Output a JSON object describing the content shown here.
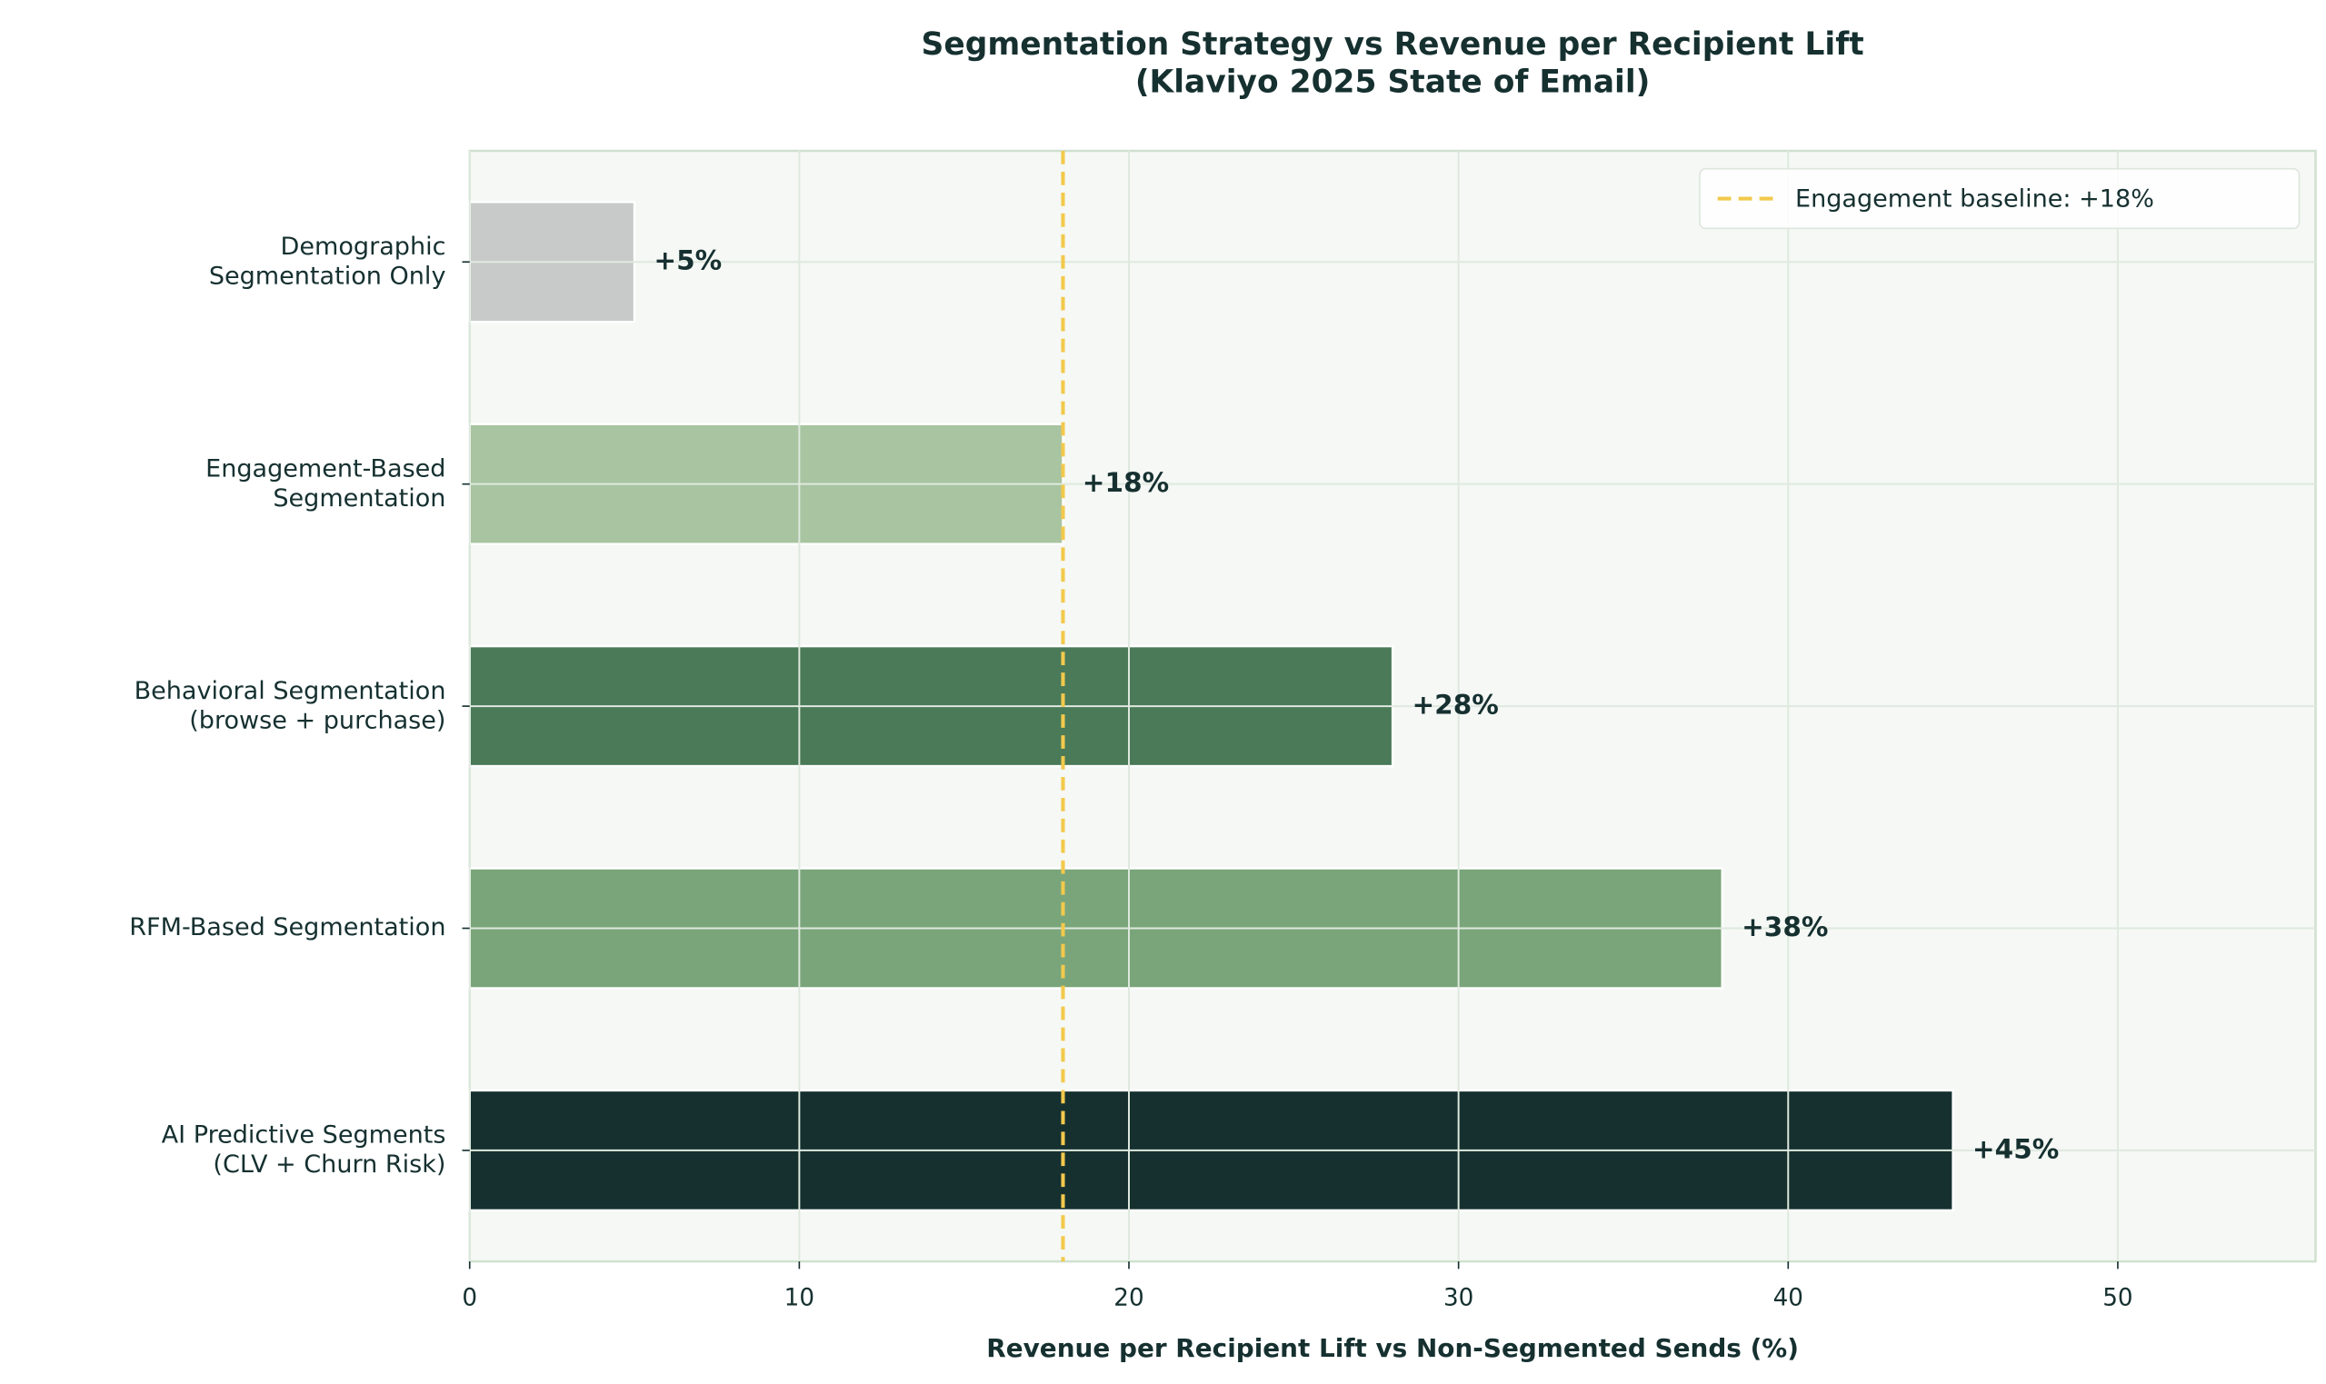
{
  "chart_data": {
    "type": "barh",
    "title": "Segmentation Strategy vs Revenue per Recipient Lift\n(Klaviyo 2025 State of Email)",
    "xlabel": "Revenue per Recipient Lift vs Non-Segmented Sends (%)",
    "categories": [
      "Demographic\nSegmentation Only",
      "Engagement-Based\nSegmentation",
      "Behavioral Segmentation\n(browse + purchase)",
      "RFM-Based Segmentation",
      "AI Predictive Segments\n(CLV + Churn Risk)"
    ],
    "values": [
      5,
      18,
      28,
      38,
      45
    ],
    "value_labels": [
      "+5%",
      "+18%",
      "+28%",
      "+38%",
      "+45%"
    ],
    "colors": [
      "#c8cac9",
      "#a8c4a0",
      "#4a7a58",
      "#7aa57a",
      "#163030"
    ],
    "xlim": [
      0,
      56
    ],
    "xticks": [
      0,
      10,
      20,
      30,
      40,
      50
    ],
    "grid": true,
    "baseline": {
      "value": 18,
      "label": "Engagement baseline: +18%",
      "color": "#f2c94c"
    },
    "legend": "upper right"
  }
}
